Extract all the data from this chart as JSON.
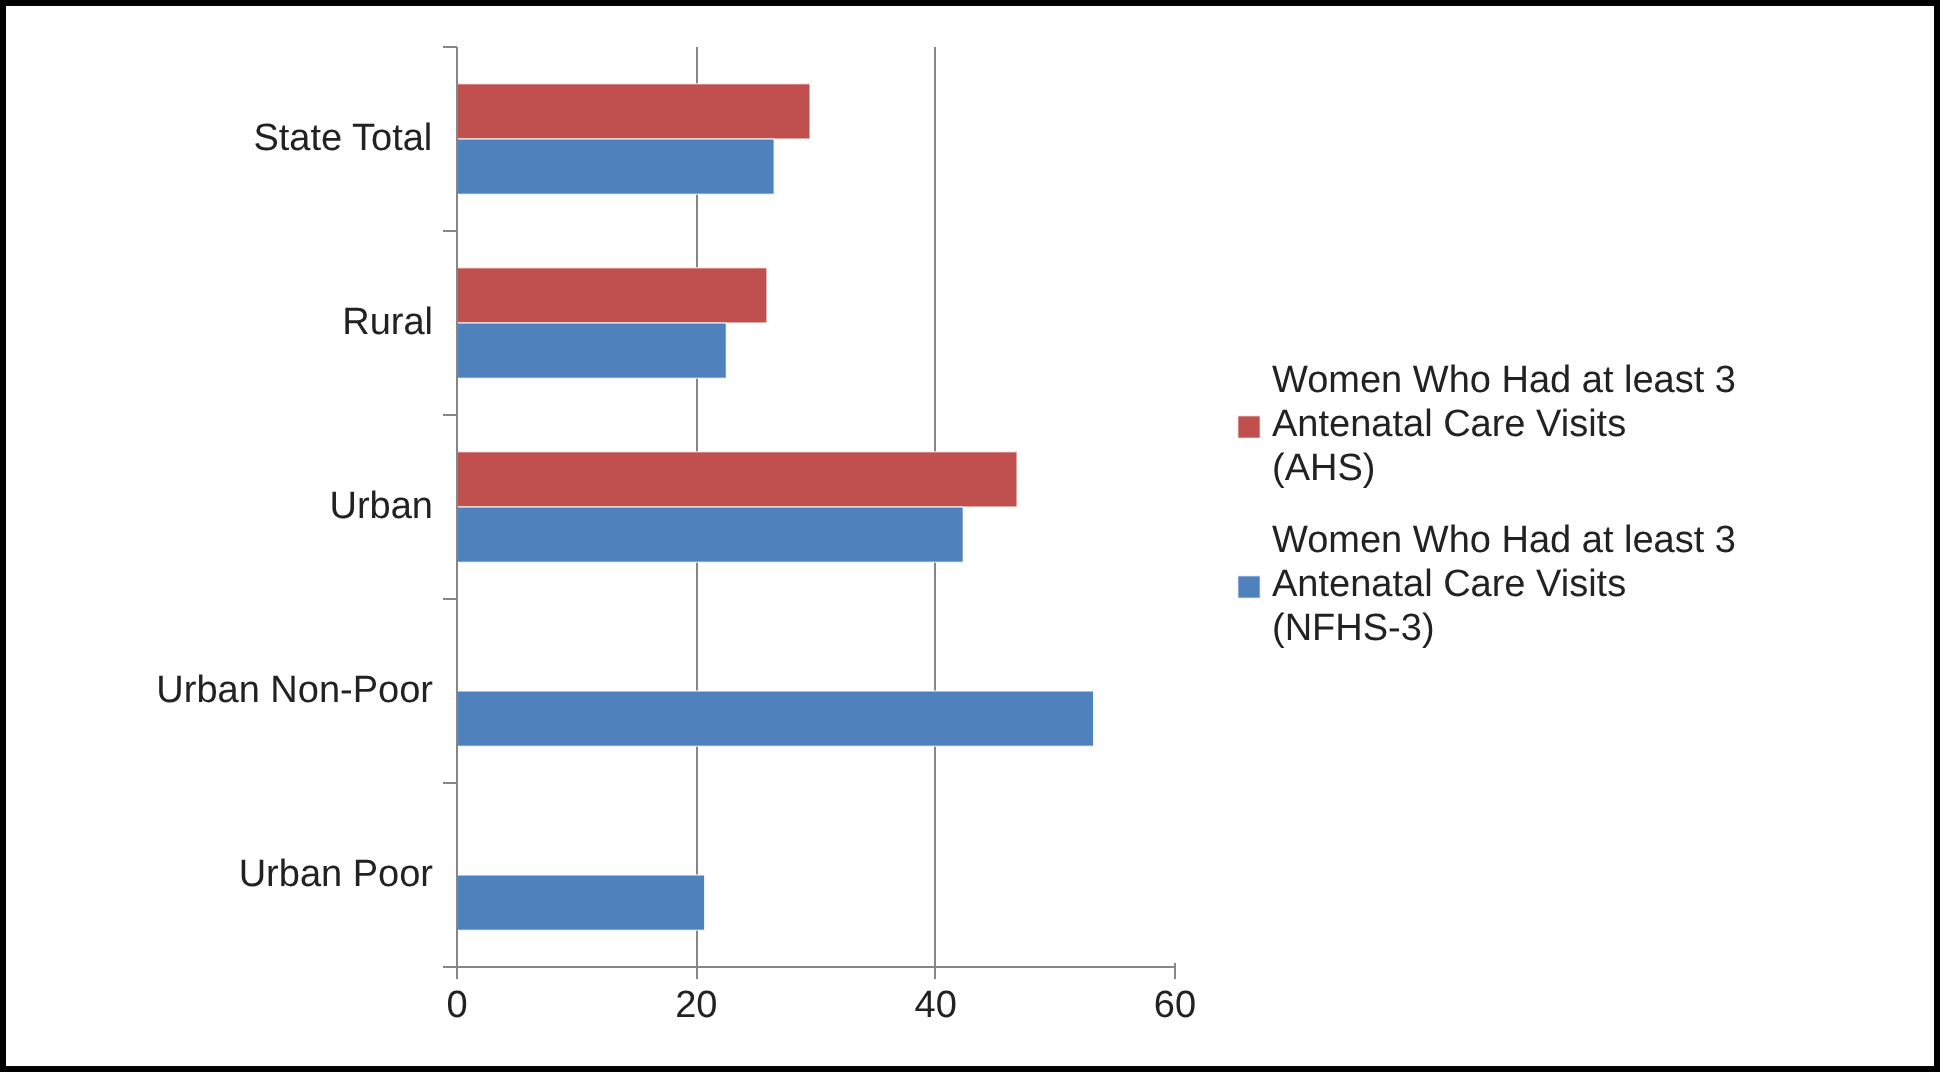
{
  "chart_data": {
    "type": "bar",
    "orientation": "horizontal",
    "categories": [
      "State Total",
      "Rural",
      "Urban",
      "Urban Non-Poor",
      "Urban Poor"
    ],
    "series": [
      {
        "name": "Women Who Had at least 3 Antenatal Care Visits (AHS)",
        "color": "#c0504d",
        "values": [
          29.5,
          25.9,
          46.8,
          null,
          null
        ]
      },
      {
        "name": "Women Who Had at least 3 Antenatal Care Visits (NFHS-3)",
        "color": "#4f81bd",
        "values": [
          26.5,
          22.5,
          42.3,
          53.2,
          20.7
        ]
      }
    ],
    "xlim": [
      0,
      60
    ],
    "xticks": [
      0,
      20,
      40,
      60
    ],
    "grid": "x",
    "legend": "right"
  }
}
